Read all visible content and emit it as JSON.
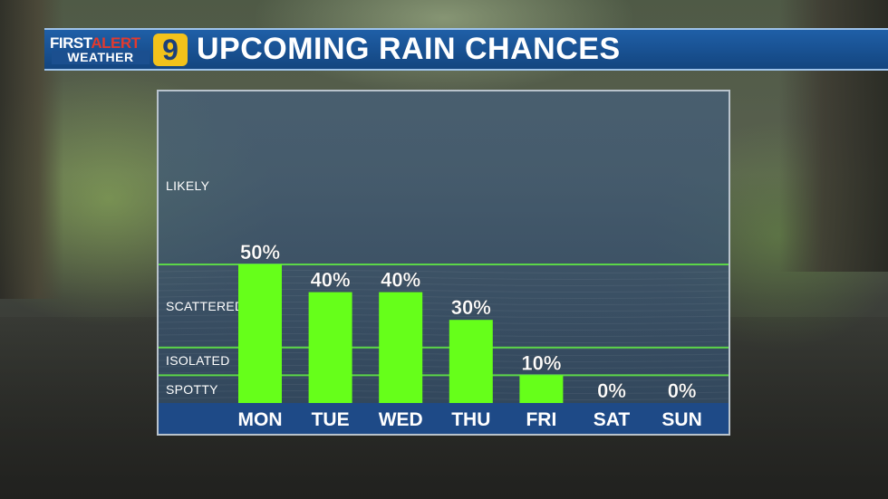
{
  "header": {
    "logo_first": "FIRST",
    "logo_alert": "ALERT",
    "logo_weather": "WEATHER",
    "logo_number": "9",
    "title": "UPCOMING RAIN CHANCES"
  },
  "colors": {
    "bar": "#66ff1a",
    "threshold_line": "#5cd648",
    "day_strip": "#1e4a87",
    "header_bg": "#1b5699",
    "logo_badge": "#f2c21b",
    "alert_red": "#e23a2e"
  },
  "chart_data": {
    "type": "bar",
    "title": "UPCOMING RAIN CHANCES",
    "categories": [
      "MON",
      "TUE",
      "WED",
      "THU",
      "FRI",
      "SAT",
      "SUN"
    ],
    "values": [
      50,
      40,
      40,
      30,
      10,
      0,
      0
    ],
    "value_labels": [
      "50%",
      "40%",
      "40%",
      "30%",
      "10%",
      "0%",
      "0%"
    ],
    "unit": "%",
    "ylim": [
      0,
      100
    ],
    "bands": [
      {
        "label": "SPOTTY",
        "from": 0,
        "to": 10
      },
      {
        "label": "ISOLATED",
        "from": 10,
        "to": 20
      },
      {
        "label": "SCATTERED",
        "from": 20,
        "to": 50
      },
      {
        "label": "LIKELY",
        "from": 50,
        "to": 100
      }
    ],
    "threshold_lines": [
      10,
      20,
      50
    ],
    "grid": false,
    "legend": "none"
  }
}
